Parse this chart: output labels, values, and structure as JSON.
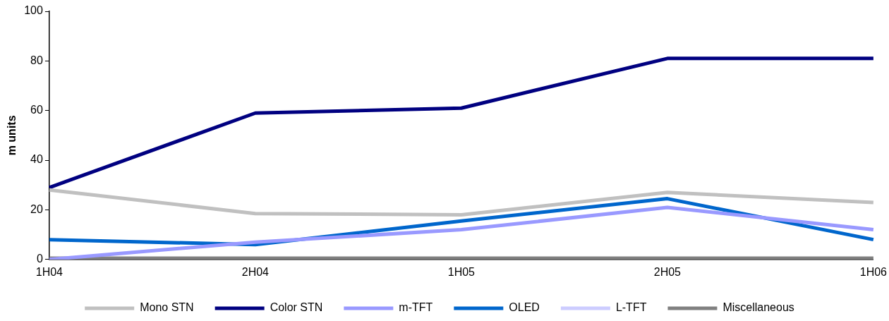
{
  "chart_data": {
    "type": "line",
    "ylabel": "m units",
    "categories": [
      "1H04",
      "2H04",
      "1H05",
      "2H05",
      "1H06"
    ],
    "ylim": [
      0,
      100
    ],
    "yticks": [
      0,
      20,
      40,
      60,
      80,
      100
    ],
    "grid": false,
    "legend": "bottom",
    "marker": "none",
    "line_style": "solid",
    "series": [
      {
        "name": "Mono STN",
        "color": "#c0c0c0",
        "values": [
          28,
          18.5,
          18,
          27,
          23
        ]
      },
      {
        "name": "Color STN",
        "color": "#000080",
        "values": [
          29,
          59,
          61,
          81,
          81
        ]
      },
      {
        "name": "m-TFT",
        "color": "#9999ff",
        "values": [
          0,
          7,
          12,
          21,
          12
        ]
      },
      {
        "name": "OLED",
        "color": "#0066cc",
        "values": [
          8,
          6,
          15.5,
          24.5,
          8
        ]
      },
      {
        "name": "L-TFT",
        "color": "#ccccff",
        "values": [
          null,
          null,
          null,
          null,
          null
        ]
      },
      {
        "name": "Miscellaneous",
        "color": "#808080",
        "values": [
          0.5,
          0.5,
          0.5,
          0.5,
          0.5
        ]
      }
    ]
  }
}
